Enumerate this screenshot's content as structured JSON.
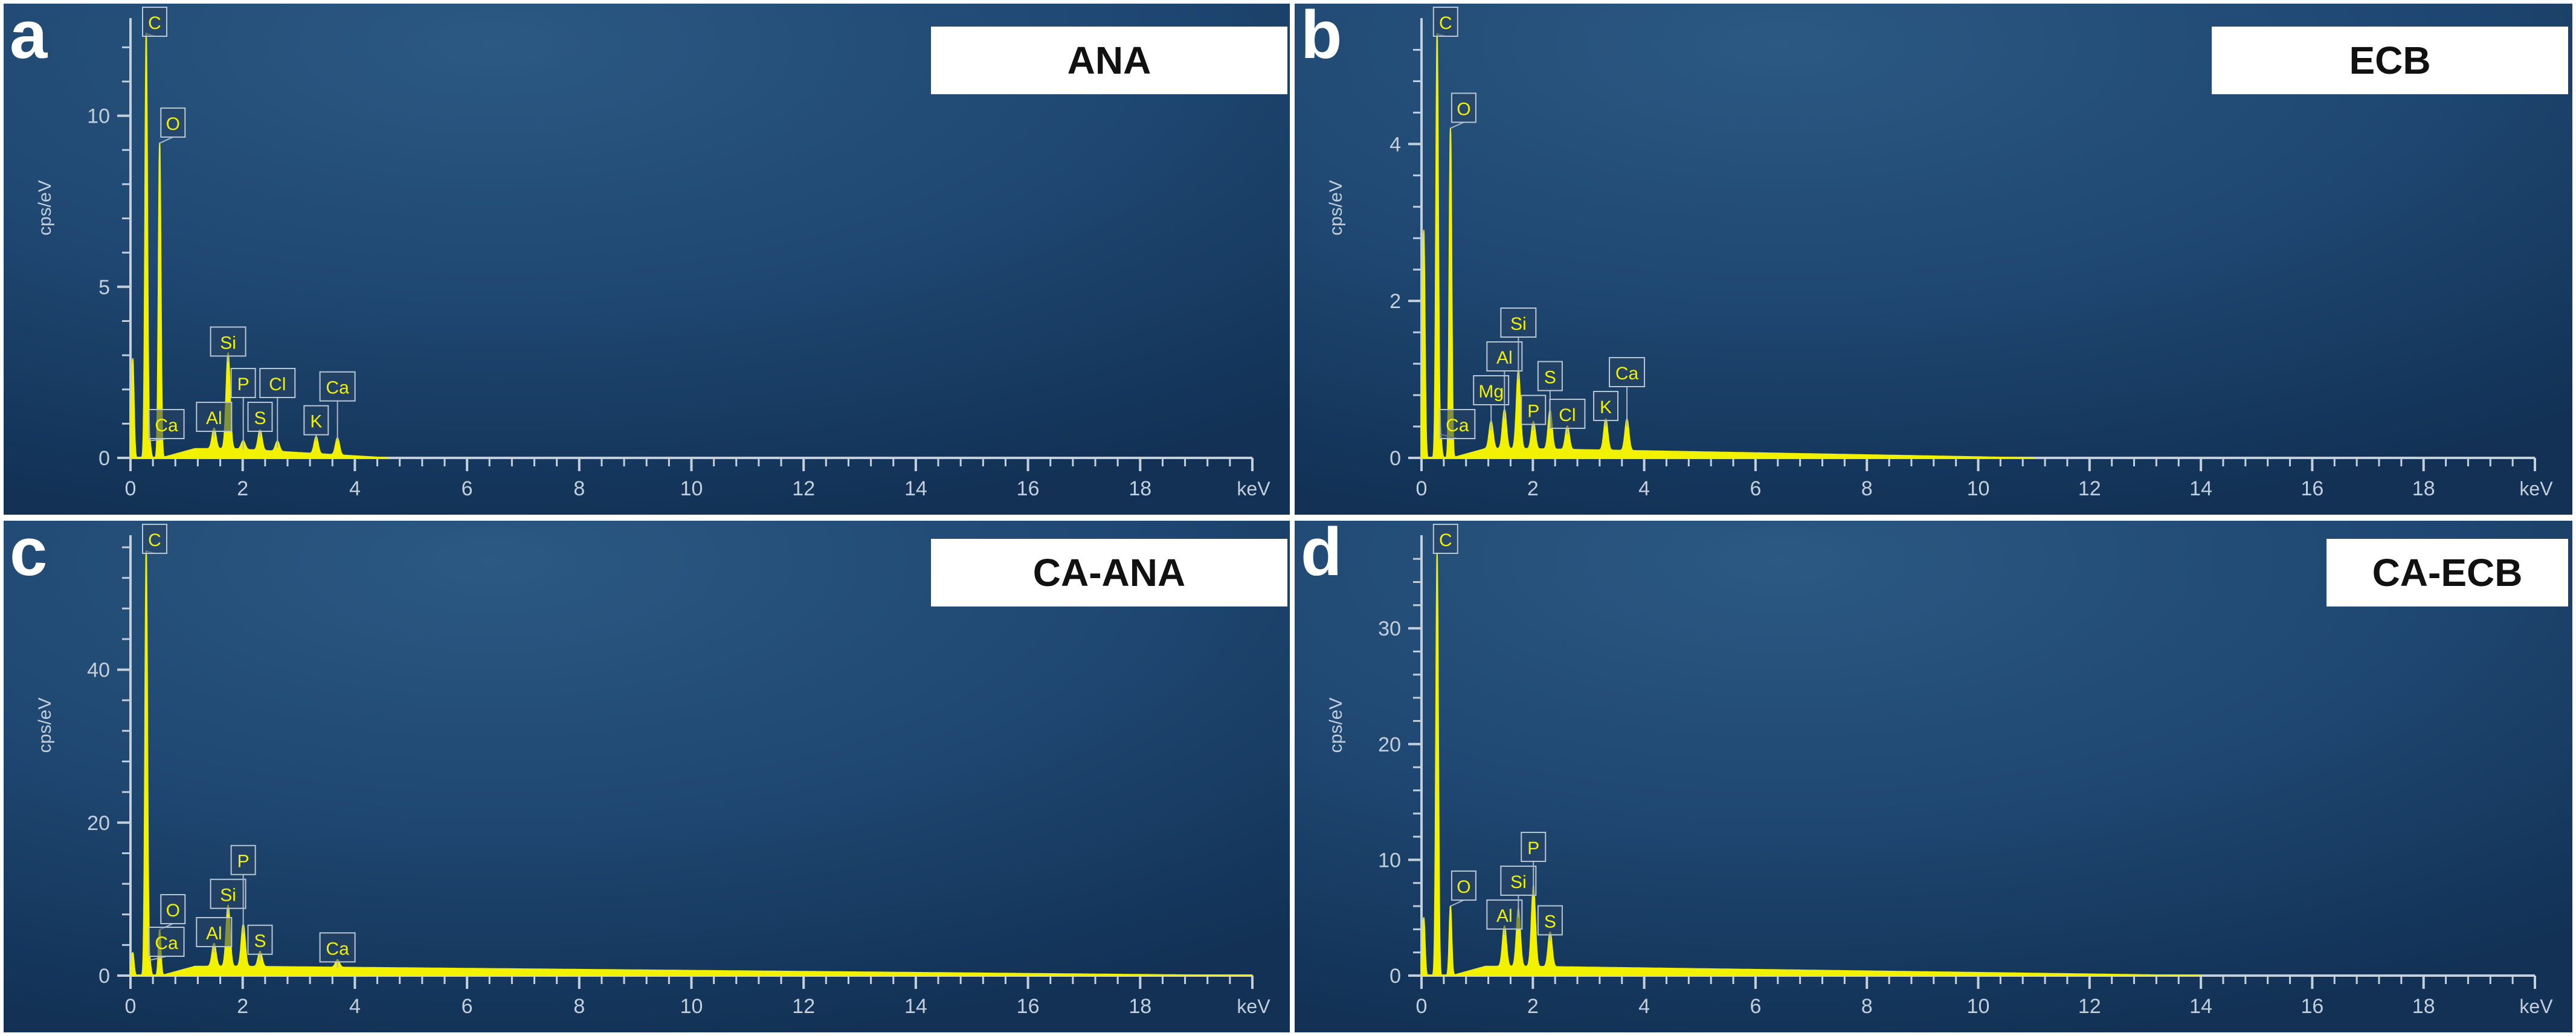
{
  "chart_data": [
    {
      "type": "line",
      "panel": "a",
      "sample_label": "ANA",
      "xlabel": "keV",
      "ylabel": "cps/eV",
      "xlim": [
        0,
        20
      ],
      "ylim": [
        0,
        12.5
      ],
      "x_ticks": [
        "0",
        "2",
        "4",
        "6",
        "8",
        "10",
        "12",
        "14",
        "16",
        "18"
      ],
      "y_ticks": [
        0,
        5,
        10
      ],
      "baseline_until": 4.6,
      "peaks": [
        {
          "element": "C",
          "x": 0.28,
          "y": 12.4
        },
        {
          "element": "O",
          "x": 0.52,
          "y": 9.2
        },
        {
          "element": "Ca",
          "x": 0.34,
          "y": 0.5
        },
        {
          "element": "Al",
          "x": 1.49,
          "y": 0.6
        },
        {
          "element": "Si",
          "x": 1.74,
          "y": 2.8
        },
        {
          "element": "P",
          "x": 2.01,
          "y": 0.25
        },
        {
          "element": "S",
          "x": 2.31,
          "y": 0.6
        },
        {
          "element": "Cl",
          "x": 2.62,
          "y": 0.3
        },
        {
          "element": "K",
          "x": 3.31,
          "y": 0.5
        },
        {
          "element": "Ca",
          "x": 3.69,
          "y": 0.5
        }
      ],
      "extra_peaks": [
        {
          "x": 0.04,
          "y": 2.9
        }
      ]
    },
    {
      "type": "line",
      "panel": "b",
      "sample_label": "ECB",
      "xlabel": "keV",
      "ylabel": "cps/eV",
      "xlim": [
        0,
        20
      ],
      "ylim": [
        0,
        5.45
      ],
      "x_ticks": [
        "0",
        "2",
        "4",
        "6",
        "8",
        "10",
        "12",
        "14",
        "16",
        "18"
      ],
      "y_ticks": [
        0,
        2,
        4
      ],
      "baseline_until": 11.0,
      "peaks": [
        {
          "element": "C",
          "x": 0.28,
          "y": 5.4
        },
        {
          "element": "O",
          "x": 0.52,
          "y": 4.2
        },
        {
          "element": "Ca",
          "x": 0.34,
          "y": 0.3
        },
        {
          "element": "Mg",
          "x": 1.25,
          "y": 0.35
        },
        {
          "element": "Al",
          "x": 1.49,
          "y": 0.5
        },
        {
          "element": "Si",
          "x": 1.74,
          "y": 1.0
        },
        {
          "element": "P",
          "x": 2.01,
          "y": 0.35
        },
        {
          "element": "S",
          "x": 2.31,
          "y": 0.5
        },
        {
          "element": "Cl",
          "x": 2.62,
          "y": 0.3
        },
        {
          "element": "K",
          "x": 3.31,
          "y": 0.4
        },
        {
          "element": "Ca",
          "x": 3.69,
          "y": 0.4
        }
      ],
      "extra_peaks": [
        {
          "x": 0.04,
          "y": 2.9
        }
      ]
    },
    {
      "type": "line",
      "panel": "c",
      "sample_label": "CA-ANA",
      "xlabel": "keV",
      "ylabel": "cps/eV",
      "xlim": [
        0,
        20
      ],
      "ylim": [
        0,
        56
      ],
      "x_ticks": [
        "0",
        "2",
        "4",
        "6",
        "8",
        "10",
        "12",
        "14",
        "16",
        "18"
      ],
      "y_ticks": [
        0,
        20,
        40
      ],
      "baseline_until": 20,
      "peaks": [
        {
          "element": "C",
          "x": 0.28,
          "y": 55.5
        },
        {
          "element": "O",
          "x": 0.52,
          "y": 6.0
        },
        {
          "element": "Ca",
          "x": 0.34,
          "y": 2.0
        },
        {
          "element": "Al",
          "x": 1.49,
          "y": 3.0
        },
        {
          "element": "Si",
          "x": 1.74,
          "y": 8.0
        },
        {
          "element": "P",
          "x": 2.01,
          "y": 5.5
        },
        {
          "element": "S",
          "x": 2.31,
          "y": 2.0
        },
        {
          "element": "Ca",
          "x": 3.69,
          "y": 1.0
        }
      ],
      "extra_peaks": [
        {
          "x": 0.04,
          "y": 3.0
        }
      ]
    },
    {
      "type": "line",
      "panel": "d",
      "sample_label": "CA-ECB",
      "xlabel": "keV",
      "ylabel": "cps/eV",
      "xlim": [
        0,
        20
      ],
      "ylim": [
        0,
        37
      ],
      "x_ticks": [
        "0",
        "2",
        "4",
        "6",
        "8",
        "10",
        "12",
        "14",
        "16",
        "18"
      ],
      "y_ticks": [
        0,
        10,
        20,
        30
      ],
      "baseline_until": 14.0,
      "peaks": [
        {
          "element": "C",
          "x": 0.28,
          "y": 36.5
        },
        {
          "element": "O",
          "x": 0.52,
          "y": 6.0
        },
        {
          "element": "Al",
          "x": 1.49,
          "y": 3.5
        },
        {
          "element": "Si",
          "x": 1.74,
          "y": 5.0
        },
        {
          "element": "P",
          "x": 2.01,
          "y": 7.0
        },
        {
          "element": "S",
          "x": 2.31,
          "y": 3.0
        }
      ],
      "extra_peaks": [
        {
          "x": 0.04,
          "y": 5.0
        }
      ]
    }
  ]
}
